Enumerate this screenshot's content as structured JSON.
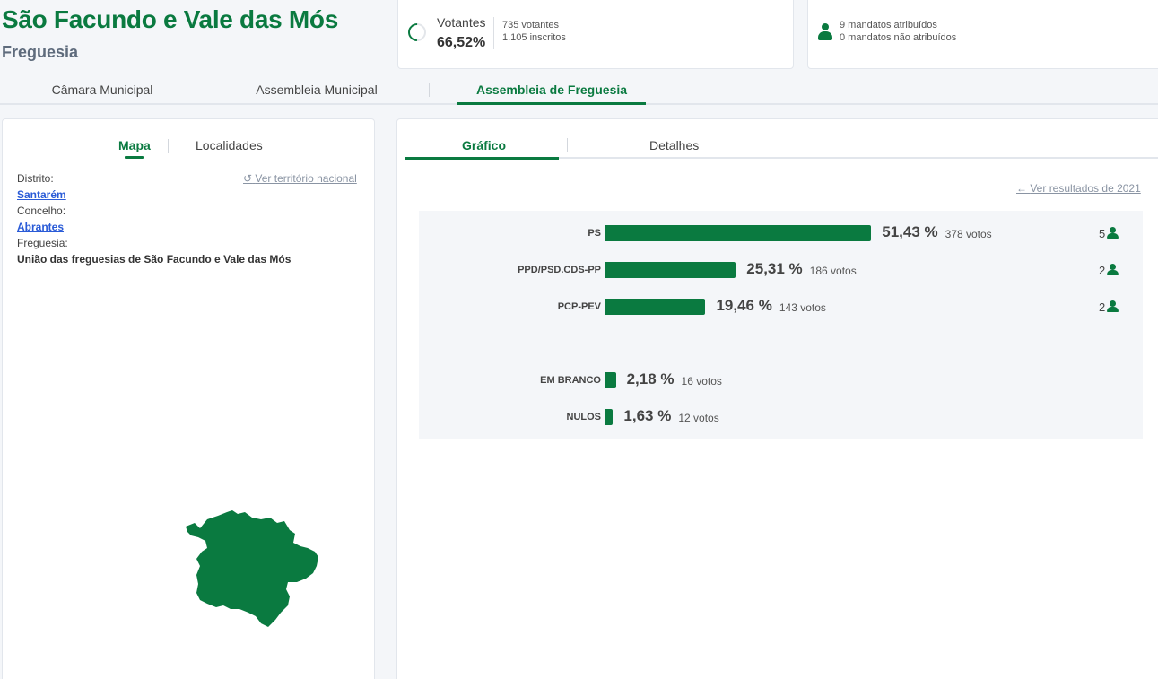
{
  "header": {
    "title": "São Facundo e Vale das Mós",
    "subtitle": "Freguesia"
  },
  "summary": {
    "votantes_label": "Votantes",
    "votantes_pct": "66,52%",
    "votantes_progress": 0.6652,
    "votantes_count": "735 votantes",
    "inscritos_count": "1.105 inscritos",
    "mandatos_atribuidos": "9 mandatos atribuídos",
    "mandatos_nao_atribuidos": "0 mandatos não atribuídos"
  },
  "main_tabs": [
    "Câmara Municipal",
    "Assembleia Municipal",
    "Assembleia de Freguesia"
  ],
  "left": {
    "tabs": [
      "Mapa",
      "Localidades"
    ],
    "ver_territorio": "Ver território nacional",
    "distrito_label": "Distrito:",
    "distrito": "Santarém",
    "concelho_label": "Concelho:",
    "concelho": "Abrantes",
    "freguesia_label": "Freguesia:",
    "freguesia": "União das freguesias de São Facundo e Vale das Mós"
  },
  "right": {
    "tabs": [
      "Gráfico",
      "Detalhes"
    ],
    "ver_resultados": "Ver resultados de 2021"
  },
  "colors": {
    "accent": "#0a7a40",
    "link": "#2a5bd7"
  },
  "chart_data": {
    "type": "bar",
    "orientation": "horizontal",
    "categories": [
      "PS",
      "PPD/PSD.CDS-PP",
      "PCP-PEV",
      "EM BRANCO",
      "NULOS"
    ],
    "values": [
      51.43,
      25.31,
      19.46,
      2.18,
      1.63
    ],
    "value_labels": [
      "51,43 %",
      "25,31 %",
      "19,46 %",
      "2,18 %",
      "1,63 %"
    ],
    "votes": [
      "378 votos",
      "186 votos",
      "143 votos",
      "16 votos",
      "12 votos"
    ],
    "seats": [
      "5",
      "2",
      "2"
    ],
    "xlim": [
      0,
      100
    ]
  }
}
